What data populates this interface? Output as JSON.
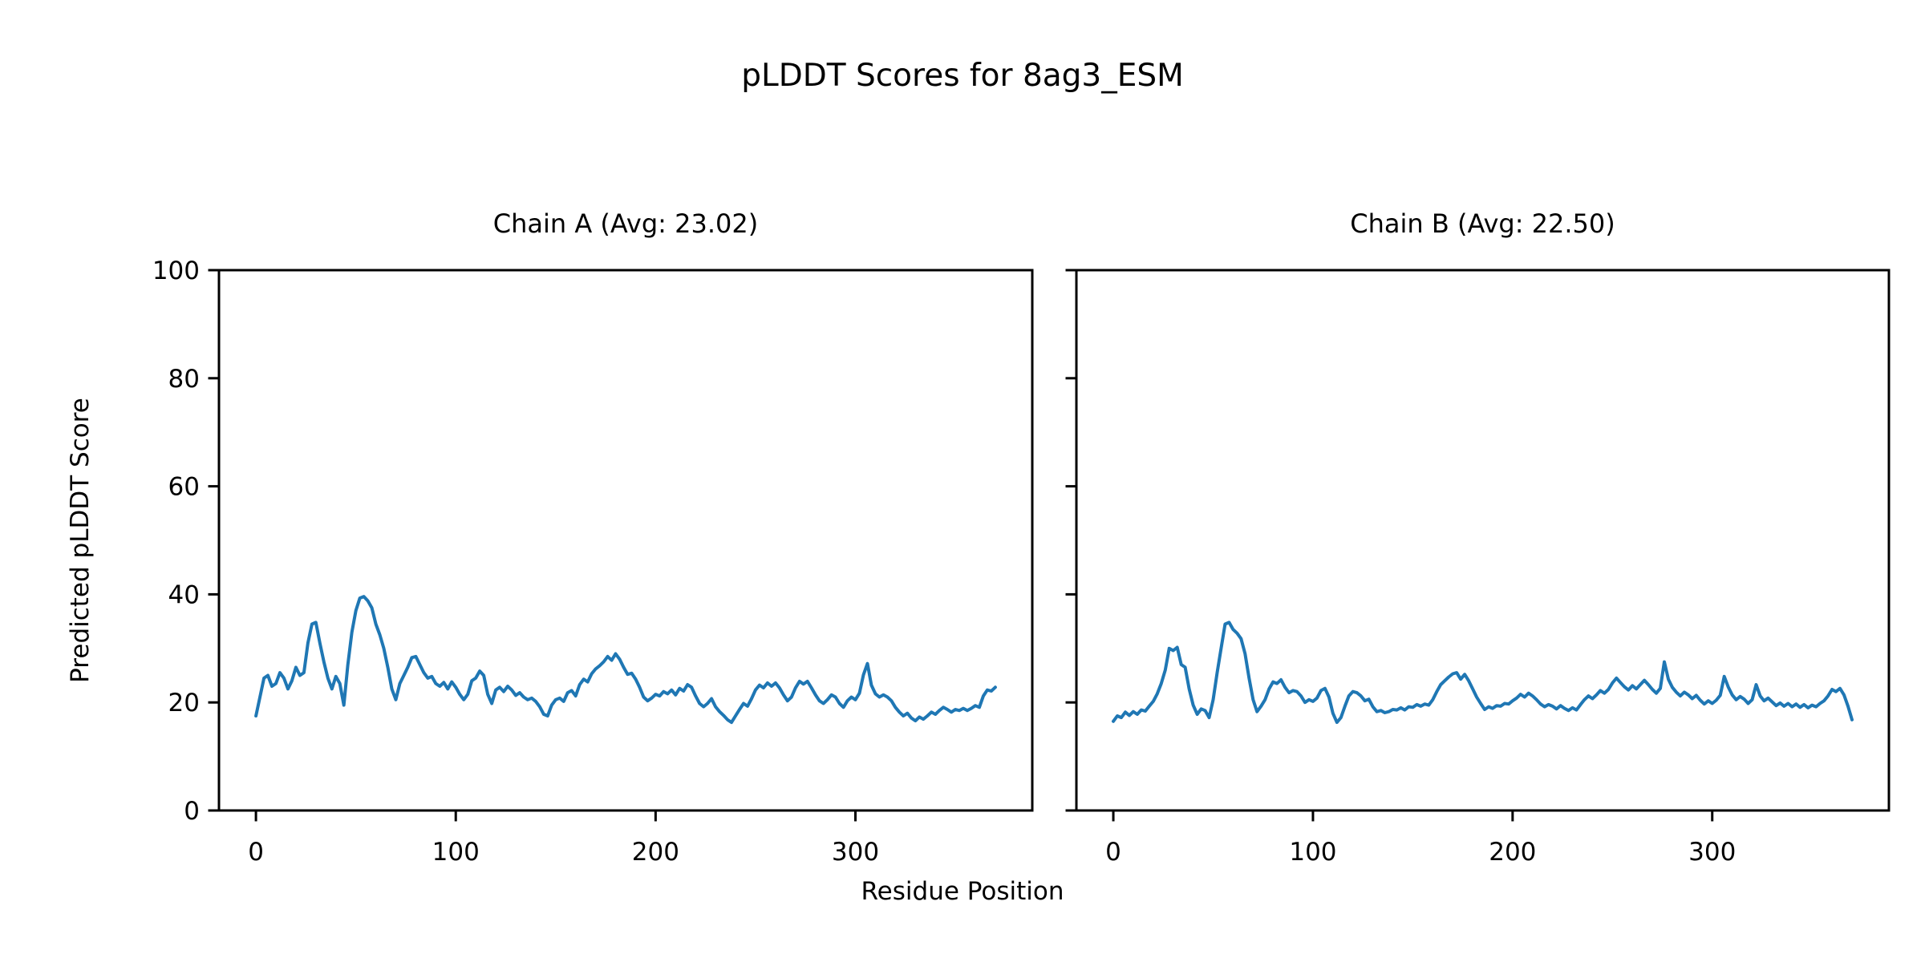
{
  "title": "pLDDT Scores for 8ag3_ESM",
  "xlabel": "Residue Position",
  "ylabel": "Predicted pLDDT Score",
  "colors": {
    "line": "#1f77b4",
    "axes": "#000000",
    "text": "#000000",
    "background": "#ffffff"
  },
  "chart_data": [
    {
      "type": "line",
      "title": "Chain A (Avg: 23.02)",
      "series_name": "Chain A",
      "average_plddt": 23.02,
      "xlim": [
        -18.5,
        388.5
      ],
      "ylim": [
        0,
        100
      ],
      "xticks": [
        0,
        100,
        200,
        300
      ],
      "yticks": [
        0,
        20,
        40,
        60,
        80,
        100
      ],
      "show_ytick_labels": true,
      "x_start": 0,
      "x_step": 2,
      "y": [
        17.5,
        21.0,
        24.5,
        25.0,
        23.0,
        23.5,
        25.5,
        24.5,
        22.5,
        24.0,
        26.5,
        25.0,
        25.5,
        31.0,
        34.5,
        34.8,
        31.0,
        27.5,
        24.5,
        22.5,
        24.8,
        23.5,
        19.5,
        27.0,
        33.0,
        37.0,
        39.3,
        39.6,
        38.8,
        37.5,
        34.5,
        32.5,
        30.0,
        26.5,
        22.5,
        20.5,
        23.5,
        25.0,
        26.5,
        28.3,
        28.5,
        27.0,
        25.5,
        24.5,
        24.8,
        23.5,
        23.0,
        23.7,
        22.5,
        23.8,
        22.8,
        21.5,
        20.5,
        21.5,
        24.0,
        24.5,
        25.8,
        25.0,
        21.5,
        19.8,
        22.3,
        22.8,
        22.0,
        23.0,
        22.3,
        21.3,
        21.8,
        21.0,
        20.5,
        20.8,
        20.2,
        19.2,
        17.8,
        17.5,
        19.5,
        20.5,
        20.8,
        20.2,
        21.8,
        22.2,
        21.2,
        23.3,
        24.3,
        23.8,
        25.3,
        26.2,
        26.8,
        27.5,
        28.5,
        27.8,
        29.0,
        28.0,
        26.5,
        25.2,
        25.4,
        24.3,
        22.8,
        21.0,
        20.3,
        20.8,
        21.5,
        21.2,
        22.0,
        21.6,
        22.3,
        21.4,
        22.6,
        22.1,
        23.3,
        22.8,
        21.2,
        19.8,
        19.2,
        19.8,
        20.7,
        19.2,
        18.3,
        17.6,
        16.8,
        16.3,
        17.5,
        18.7,
        19.8,
        19.3,
        20.7,
        22.3,
        23.2,
        22.7,
        23.6,
        23.0,
        23.6,
        22.7,
        21.4,
        20.3,
        21.0,
        22.7,
        23.9,
        23.4,
        23.9,
        22.7,
        21.4,
        20.3,
        19.8,
        20.5,
        21.4,
        21.0,
        19.8,
        19.1,
        20.3,
        21.0,
        20.5,
        21.7,
        25.1,
        27.2,
        23.2,
        21.6,
        21.0,
        21.4,
        21.0,
        20.3,
        19.1,
        18.2,
        17.5,
        18.0,
        17.1,
        16.6,
        17.3,
        16.9,
        17.5,
        18.2,
        17.8,
        18.5,
        19.1,
        18.7,
        18.2,
        18.7,
        18.5,
        18.9,
        18.5,
        18.9,
        19.4,
        19.1,
        21.2,
        22.3,
        22.1,
        22.8
      ]
    },
    {
      "type": "line",
      "title": "Chain B (Avg: 22.50)",
      "series_name": "Chain B",
      "average_plddt": 22.5,
      "xlim": [
        -18.5,
        388.5
      ],
      "ylim": [
        0,
        100
      ],
      "xticks": [
        0,
        100,
        200,
        300
      ],
      "yticks": [
        0,
        20,
        40,
        60,
        80,
        100
      ],
      "show_ytick_labels": false,
      "x_start": 0,
      "x_step": 2,
      "y": [
        16.5,
        17.5,
        17.2,
        18.2,
        17.6,
        18.3,
        17.8,
        18.6,
        18.4,
        19.3,
        20.2,
        21.6,
        23.5,
        26.0,
        30.0,
        29.6,
        30.2,
        27.0,
        26.5,
        22.5,
        19.5,
        17.8,
        18.8,
        18.5,
        17.2,
        20.5,
        25.5,
        30.0,
        34.5,
        34.8,
        33.5,
        32.8,
        31.8,
        29.0,
        24.5,
        20.5,
        18.3,
        19.3,
        20.5,
        22.5,
        23.8,
        23.5,
        24.2,
        22.8,
        21.8,
        22.2,
        22.0,
        21.2,
        20.0,
        20.5,
        20.2,
        20.8,
        22.2,
        22.6,
        21.0,
        18.0,
        16.3,
        17.2,
        19.3,
        21.2,
        22.0,
        21.8,
        21.2,
        20.3,
        20.6,
        19.2,
        18.3,
        18.5,
        18.1,
        18.3,
        18.7,
        18.6,
        19.0,
        18.6,
        19.2,
        19.1,
        19.6,
        19.3,
        19.7,
        19.5,
        20.5,
        22.0,
        23.3,
        24.0,
        24.7,
        25.3,
        25.5,
        24.3,
        25.2,
        24.0,
        22.5,
        21.0,
        19.8,
        18.7,
        19.2,
        18.9,
        19.4,
        19.3,
        19.8,
        19.7,
        20.3,
        20.8,
        21.5,
        21.0,
        21.7,
        21.2,
        20.5,
        19.7,
        19.2,
        19.6,
        19.3,
        18.8,
        19.4,
        18.9,
        18.5,
        19.0,
        18.6,
        19.6,
        20.5,
        21.2,
        20.7,
        21.4,
        22.2,
        21.7,
        22.4,
        23.6,
        24.5,
        23.7,
        22.9,
        22.3,
        23.1,
        22.5,
        23.3,
        24.1,
        23.3,
        22.4,
        21.7,
        22.6,
        27.5,
        24.3,
        22.8,
        21.9,
        21.2,
        21.9,
        21.4,
        20.7,
        21.3,
        20.4,
        19.7,
        20.3,
        19.8,
        20.4,
        21.3,
        24.8,
        22.9,
        21.4,
        20.5,
        21.1,
        20.6,
        19.8,
        20.5,
        23.3,
        21.2,
        20.3,
        20.8,
        20.1,
        19.4,
        19.9,
        19.3,
        19.8,
        19.2,
        19.7,
        19.1,
        19.6,
        19.0,
        19.5,
        19.2,
        19.8,
        20.3,
        21.2,
        22.4,
        22.0,
        22.6,
        21.4,
        19.3,
        16.8
      ]
    }
  ]
}
